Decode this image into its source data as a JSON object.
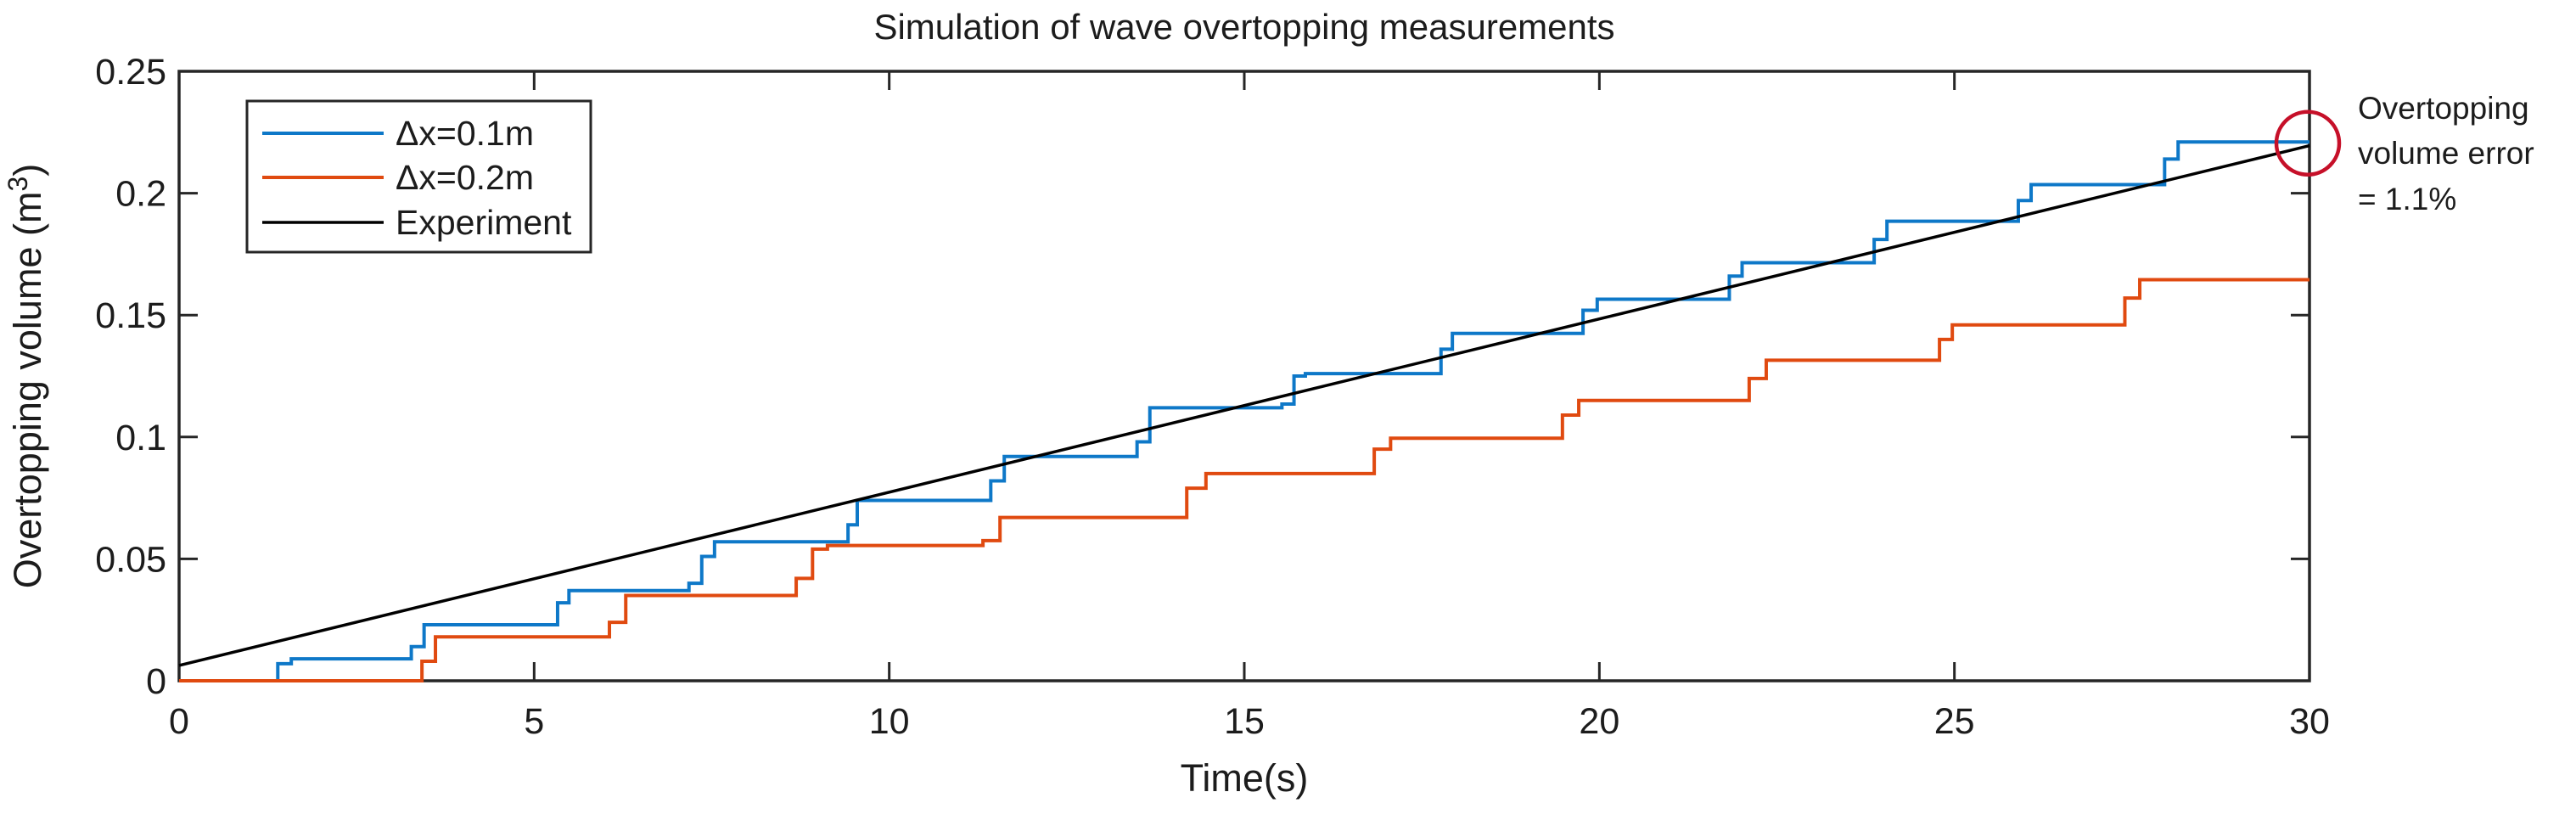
{
  "figure": {
    "background": "#ffffff",
    "colors": {
      "axis": "#262626",
      "text": "#1c1c1c"
    }
  },
  "axes": {
    "ylabel_parts": {
      "pre": "Overtopping volume (m",
      "sup": "3",
      "post": ")"
    }
  },
  "annotation": {
    "lines": [
      "Overtopping",
      "volume error",
      "= 1.1%"
    ],
    "color": "#c61029",
    "target": {
      "t": 30,
      "v": 0.2205
    }
  },
  "chart_data": {
    "type": "line",
    "title": "Simulation of wave overtopping measurements",
    "xlabel": "Time(s)",
    "ylabel": "Overtopping volume (m³)",
    "xlim": [
      0,
      30
    ],
    "ylim": [
      0,
      0.25
    ],
    "grid": false,
    "legend_position": "top-left-inside",
    "x_tick_values": [
      0,
      5,
      10,
      15,
      20,
      25,
      30
    ],
    "x_tick_labels": [
      "0",
      "5",
      "10",
      "15",
      "20",
      "25",
      "30"
    ],
    "y_tick_values": [
      0,
      0.05,
      0.1,
      0.15,
      0.2,
      0.25
    ],
    "y_tick_labels": [
      "0",
      "0.05",
      "0.1",
      "0.15",
      "0.2",
      "0.25"
    ],
    "series": [
      {
        "name": "Δx=0.1m",
        "color": "#0e78c8",
        "style": "step-after",
        "width": 4,
        "points": [
          [
            0,
            0
          ],
          [
            1.39,
            0.007
          ],
          [
            1.58,
            0.009
          ],
          [
            3.27,
            0.014
          ],
          [
            3.45,
            0.023
          ],
          [
            5.33,
            0.032
          ],
          [
            5.49,
            0.037
          ],
          [
            7.18,
            0.04
          ],
          [
            7.36,
            0.051
          ],
          [
            7.54,
            0.057
          ],
          [
            9.42,
            0.064
          ],
          [
            9.55,
            0.074
          ],
          [
            11.43,
            0.082
          ],
          [
            11.62,
            0.092
          ],
          [
            13.49,
            0.098
          ],
          [
            13.67,
            0.112
          ],
          [
            15.53,
            0.1135
          ],
          [
            15.7,
            0.125
          ],
          [
            15.86,
            0.126
          ],
          [
            17.77,
            0.136
          ],
          [
            17.93,
            0.1425
          ],
          [
            19.77,
            0.152
          ],
          [
            19.97,
            0.1565
          ],
          [
            21.83,
            0.166
          ],
          [
            22.01,
            0.1715
          ],
          [
            23.87,
            0.181
          ],
          [
            24.05,
            0.1885
          ],
          [
            25.9,
            0.197
          ],
          [
            26.08,
            0.2035
          ],
          [
            27.96,
            0.214
          ],
          [
            28.15,
            0.221
          ],
          [
            30,
            0.221
          ]
        ]
      },
      {
        "name": "Δx=0.2m",
        "color": "#e04a10",
        "style": "step-after",
        "width": 4,
        "points": [
          [
            0,
            0
          ],
          [
            3.42,
            0.008
          ],
          [
            3.61,
            0.018
          ],
          [
            6.06,
            0.024
          ],
          [
            6.29,
            0.035
          ],
          [
            8.69,
            0.042
          ],
          [
            8.92,
            0.054
          ],
          [
            9.13,
            0.0555
          ],
          [
            11.32,
            0.0575
          ],
          [
            11.56,
            0.067
          ],
          [
            14.19,
            0.079
          ],
          [
            14.46,
            0.085
          ],
          [
            16.83,
            0.095
          ],
          [
            17.06,
            0.0995
          ],
          [
            19.48,
            0.109
          ],
          [
            19.71,
            0.115
          ],
          [
            22.11,
            0.124
          ],
          [
            22.35,
            0.1315
          ],
          [
            24.79,
            0.14
          ],
          [
            24.97,
            0.146
          ],
          [
            27.4,
            0.157
          ],
          [
            27.61,
            0.1645
          ],
          [
            30,
            0.1645
          ]
        ]
      },
      {
        "name": "Experiment",
        "color": "#000000",
        "style": "line",
        "width": 3.5,
        "points": [
          [
            0,
            0.0063
          ],
          [
            30,
            0.2195
          ]
        ]
      }
    ]
  }
}
